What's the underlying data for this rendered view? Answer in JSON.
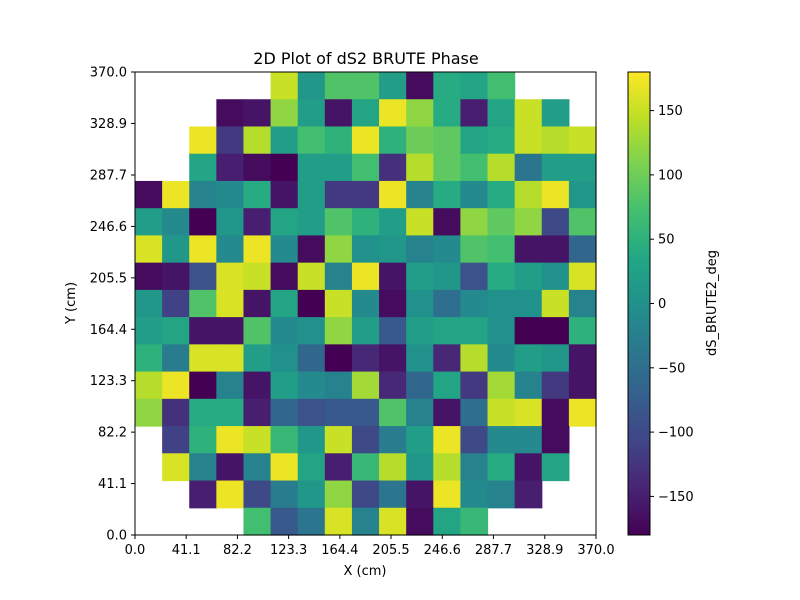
{
  "chart_data": {
    "type": "heatmap",
    "title": "2D Plot of dS2 BRUTE Phase",
    "xlabel": "X (cm)",
    "ylabel": "Y (cm)",
    "xlim": [
      0.0,
      370.0
    ],
    "ylim": [
      0.0,
      370.0
    ],
    "x_ticks": [
      "0.0",
      "41.1",
      "82.2",
      "123.3",
      "164.4",
      "205.5",
      "246.6",
      "287.7",
      "328.9",
      "370.0"
    ],
    "y_ticks": [
      "0.0",
      "41.1",
      "82.2",
      "123.3",
      "164.4",
      "205.5",
      "246.6",
      "287.7",
      "328.9",
      "370.0"
    ],
    "grid_cols": 17,
    "grid_rows": 17,
    "colormap": "viridis",
    "colorbar": {
      "label": "dS_BRUTE2_deg",
      "range": [
        -180,
        180
      ],
      "ticks": [
        "150",
        "100",
        "50",
        "0",
        "−50",
        "−100",
        "−150"
      ],
      "tick_values": [
        150,
        100,
        50,
        0,
        -50,
        -100,
        -150
      ]
    },
    "values_top_to_bottom": [
      [
        null,
        null,
        null,
        null,
        null,
        150,
        10,
        80,
        80,
        20,
        -170,
        40,
        30,
        70,
        null,
        null,
        null
      ],
      [
        null,
        null,
        null,
        -170,
        -160,
        120,
        20,
        -160,
        30,
        170,
        120,
        40,
        -150,
        30,
        150,
        20,
        null
      ],
      [
        null,
        null,
        170,
        -120,
        140,
        20,
        70,
        50,
        170,
        50,
        100,
        90,
        30,
        40,
        150,
        140,
        150
      ],
      [
        null,
        null,
        30,
        -150,
        -170,
        -180,
        20,
        20,
        70,
        -130,
        140,
        90,
        70,
        140,
        -40,
        20,
        20
      ],
      [
        -170,
        170,
        -20,
        -10,
        40,
        -160,
        20,
        -120,
        -120,
        170,
        -20,
        40,
        -10,
        40,
        140,
        170,
        10
      ],
      [
        20,
        -10,
        -180,
        10,
        -150,
        30,
        20,
        80,
        50,
        20,
        150,
        -170,
        120,
        90,
        120,
        -100,
        80
      ],
      [
        160,
        10,
        170,
        -10,
        170,
        -10,
        -170,
        120,
        0,
        10,
        -20,
        -10,
        80,
        70,
        -160,
        -160,
        -60
      ],
      [
        -170,
        -160,
        -90,
        160,
        150,
        -170,
        150,
        -20,
        170,
        -160,
        20,
        10,
        -90,
        40,
        20,
        0,
        160
      ],
      [
        10,
        -110,
        80,
        160,
        -160,
        30,
        -180,
        150,
        -10,
        -170,
        0,
        -50,
        -10,
        0,
        0,
        150,
        -20
      ],
      [
        20,
        30,
        -160,
        -160,
        80,
        -10,
        0,
        120,
        20,
        -80,
        20,
        30,
        30,
        0,
        -180,
        -180,
        50
      ],
      [
        50,
        -30,
        160,
        160,
        20,
        0,
        -60,
        -180,
        -140,
        -160,
        0,
        -140,
        140,
        -10,
        20,
        10,
        -160
      ],
      [
        140,
        170,
        -180,
        -20,
        -160,
        20,
        -10,
        -20,
        130,
        -140,
        -60,
        30,
        -120,
        130,
        -20,
        -120,
        -160
      ],
      [
        120,
        -130,
        40,
        40,
        -150,
        -60,
        -90,
        -80,
        -80,
        80,
        -20,
        -160,
        -50,
        150,
        160,
        -170,
        170
      ],
      [
        null,
        -110,
        50,
        170,
        150,
        60,
        10,
        150,
        -100,
        -30,
        20,
        170,
        -100,
        -10,
        -10,
        -170,
        null
      ],
      [
        null,
        160,
        -20,
        -160,
        -20,
        170,
        30,
        -150,
        60,
        140,
        10,
        140,
        -20,
        40,
        -160,
        30,
        null
      ],
      [
        null,
        null,
        -150,
        170,
        -100,
        -30,
        10,
        120,
        -100,
        -40,
        -160,
        170,
        -10,
        -20,
        -150,
        null,
        null
      ],
      [
        null,
        null,
        null,
        null,
        70,
        -80,
        -40,
        160,
        -20,
        160,
        -170,
        30,
        60,
        null,
        null,
        null,
        null
      ]
    ]
  }
}
